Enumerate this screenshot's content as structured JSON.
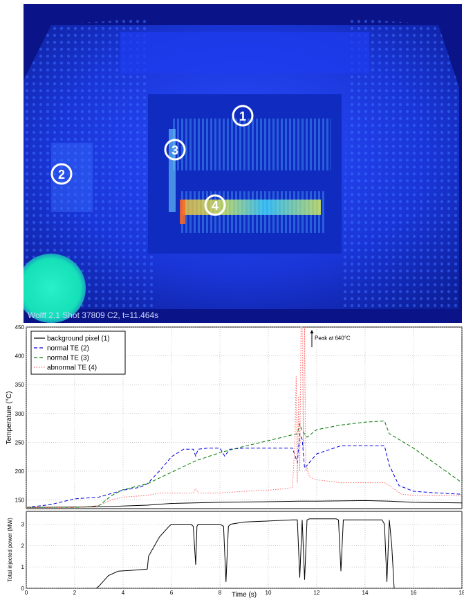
{
  "camera_image": {
    "caption": "Wolff 2.1 Shot 37809 C2, t=11.464s",
    "markers": [
      {
        "label": "1"
      },
      {
        "label": "2"
      },
      {
        "label": "3"
      },
      {
        "label": "4"
      }
    ],
    "colors": {
      "background": "#0a1a7a",
      "glow": "#1f5cff",
      "hot": "#e8ff50",
      "spot": "#19e6c0"
    }
  },
  "chart_data": [
    {
      "type": "line",
      "title": "",
      "xlabel": "",
      "ylabel": "Temperature (°C)",
      "xlim": [
        0,
        18
      ],
      "ylim": [
        135,
        450
      ],
      "x_ticks": [
        "0",
        "2",
        "4",
        "6",
        "8",
        "10",
        "12",
        "14",
        "16",
        "18"
      ],
      "y_ticks": [
        "150",
        "200",
        "250",
        "300",
        "350",
        "400",
        "450"
      ],
      "grid": true,
      "legend_position": "top-left",
      "annotation": {
        "text": "Peak at 640°C",
        "x": 11.8,
        "y": 415
      },
      "series": [
        {
          "name": "background pixel (1)",
          "color": "#000000",
          "dash": "solid",
          "x": [
            0,
            3,
            5,
            6,
            8,
            10,
            11.3,
            11.5,
            12,
            14,
            15,
            16,
            18
          ],
          "y": [
            137,
            138,
            141,
            144,
            146,
            147,
            148,
            148,
            148,
            149,
            148,
            146,
            145
          ]
        },
        {
          "name": "normal TE (2)",
          "color": "#0000dd",
          "dash": "dashed",
          "x": [
            0,
            1,
            2,
            3,
            4,
            4.7,
            5,
            5.5,
            6,
            6.5,
            6.9,
            7,
            7.1,
            7.5,
            8,
            8.2,
            8.4,
            9,
            10,
            11,
            11.2,
            11.3,
            11.4,
            11.5,
            12,
            13,
            14,
            14.8,
            15,
            15.4,
            16,
            17,
            18
          ],
          "y": [
            137,
            142,
            152,
            155,
            167,
            172,
            178,
            200,
            225,
            238,
            238,
            226,
            238,
            240,
            240,
            226,
            238,
            240,
            240,
            240,
            215,
            265,
            255,
            205,
            230,
            244,
            244,
            244,
            210,
            175,
            165,
            162,
            160
          ]
        },
        {
          "name": "normal TE (3)",
          "color": "#007700",
          "dash": "dashed",
          "x": [
            0,
            2,
            2.5,
            3,
            3.5,
            4,
            5,
            6,
            7,
            8,
            9,
            10,
            11,
            11.2,
            11.3,
            11.4,
            11.6,
            12,
            13,
            14,
            14.8,
            15,
            16,
            17,
            18
          ],
          "y": [
            137,
            137,
            138,
            140,
            157,
            168,
            178,
            198,
            218,
            232,
            243,
            253,
            263,
            265,
            282,
            270,
            259,
            272,
            280,
            285,
            287,
            265,
            240,
            210,
            180
          ]
        },
        {
          "name": "abnormal TE (4)",
          "color": "#ff6666",
          "dash": "dotted",
          "x": [
            0,
            2,
            3,
            3.5,
            4,
            5,
            5.5,
            6,
            6.9,
            7,
            7.1,
            8,
            9,
            10,
            10.8,
            11,
            11.1,
            11.15,
            11.2,
            11.25,
            11.3,
            11.35,
            11.4,
            11.45,
            11.5,
            11.55,
            11.6,
            11.7,
            12,
            13,
            14,
            14.8,
            15,
            15.5,
            16,
            18
          ],
          "y": [
            137,
            137,
            140,
            150,
            155,
            158,
            162,
            162,
            162,
            170,
            162,
            162,
            165,
            167,
            170,
            172,
            250,
            365,
            180,
            330,
            200,
            450,
            450,
            240,
            450,
            200,
            205,
            190,
            185,
            180,
            180,
            180,
            175,
            160,
            158,
            157
          ]
        }
      ]
    },
    {
      "type": "line",
      "title": "",
      "xlabel": "Time (s)",
      "ylabel": "Total injected power (MW)",
      "xlim": [
        0,
        18
      ],
      "ylim": [
        0,
        3.6
      ],
      "x_ticks": [
        "0",
        "2",
        "4",
        "6",
        "8",
        "10",
        "12",
        "14",
        "16",
        "18"
      ],
      "y_ticks": [
        "0",
        "1",
        "2",
        "3"
      ],
      "grid": true,
      "series": [
        {
          "name": "",
          "color": "#000000",
          "dash": "solid",
          "x": [
            2.9,
            3.0,
            3.4,
            3.8,
            4.5,
            5.0,
            5.05,
            5.5,
            5.9,
            6.0,
            6.8,
            6.9,
            7.0,
            7.05,
            7.1,
            8.0,
            8.15,
            8.25,
            8.35,
            8.45,
            9,
            10,
            11,
            11.2,
            11.3,
            11.4,
            11.5,
            11.6,
            11.7,
            12,
            12.8,
            12.9,
            13.0,
            13.1,
            14,
            14.7,
            14.8,
            14.9,
            15.0,
            15.1,
            15.2
          ],
          "y": [
            0,
            0.1,
            0.6,
            0.8,
            0.85,
            0.9,
            1.5,
            2.4,
            2.9,
            3.0,
            3.0,
            2.9,
            1.1,
            2.9,
            3.0,
            3.0,
            2.9,
            0.3,
            2.9,
            3.0,
            3.1,
            3.15,
            3.2,
            3.2,
            0.5,
            3.2,
            0.4,
            3.2,
            3.25,
            3.25,
            3.25,
            3.2,
            0.8,
            3.2,
            3.2,
            3.2,
            3.0,
            0.3,
            3.2,
            2.0,
            0
          ]
        }
      ]
    }
  ]
}
